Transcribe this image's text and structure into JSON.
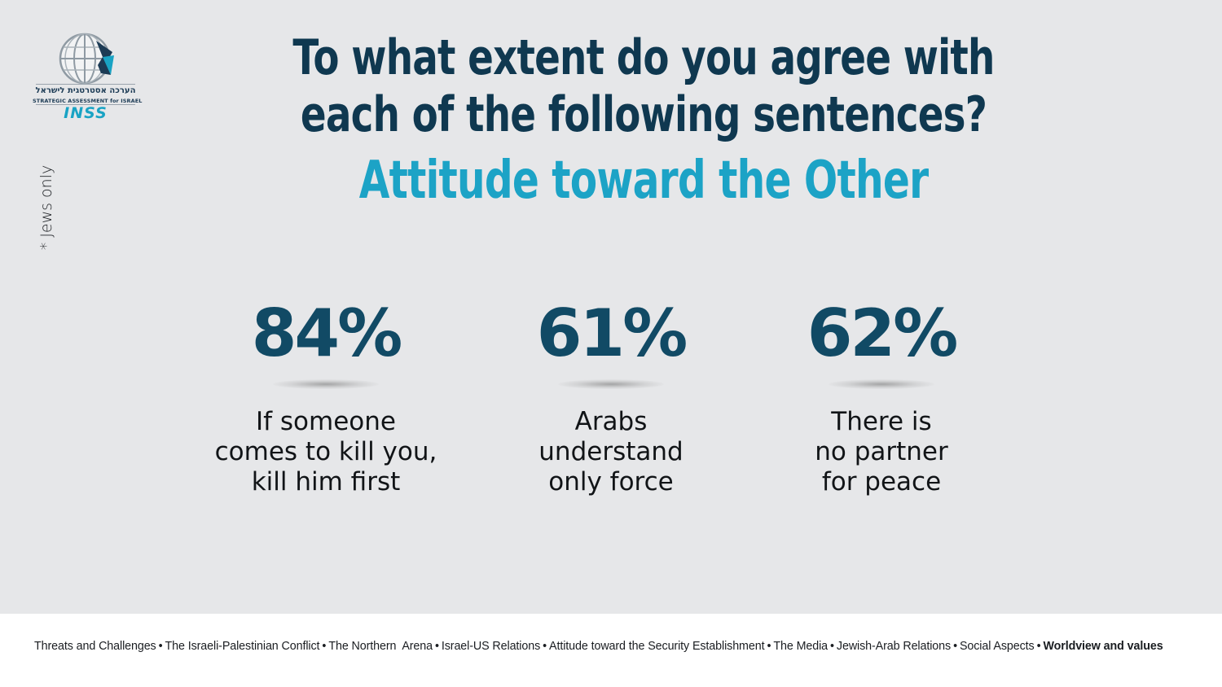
{
  "logo": {
    "hebrew": "הערכה אסטרטגית לישראל",
    "english": "STRATEGIC ASSESSMENT for ISRAEL",
    "brand": "INSS"
  },
  "side_note": "* Jews only",
  "title": "To what extent do you agree with each of the following sentences?",
  "subtitle": "Attitude toward the Other",
  "stats": [
    {
      "value": "84%",
      "label": "If someone\ncomes to kill you,\nkill him first"
    },
    {
      "value": "61%",
      "label": "Arabs\nunderstand\nonly force"
    },
    {
      "value": "62%",
      "label": "There is\nno partner\nfor peace"
    }
  ],
  "footer_nav": {
    "items": [
      "Threats and Challenges",
      "The Israeli-Palestinian Conflict",
      "The Northern  Arena",
      "Israel-US Relations",
      "Attitude toward the Security Establishment",
      "The Media",
      "Jewish-Arab Relations",
      "Social Aspects",
      "Worldview and values"
    ],
    "separator": "•",
    "active_item": "Worldview and values"
  },
  "colors": {
    "background": "#e6e7e9",
    "title": "#0f3850",
    "subtitle": "#1ca3c6",
    "stat_value": "#114a65",
    "footer_background": "#ffffff"
  }
}
